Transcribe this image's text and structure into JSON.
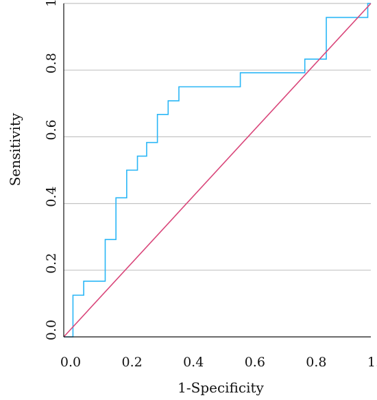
{
  "chart_data": {
    "type": "line",
    "title": "",
    "xlabel": "1-Specificity",
    "ylabel": "Sensitivity",
    "xlim": [
      0,
      1
    ],
    "ylim": [
      0,
      1
    ],
    "x_ticks": [
      "0.0",
      "0.2",
      "0.4",
      "0.6",
      "0.8",
      "1.0"
    ],
    "y_ticks": [
      "0.0",
      "0.2",
      "0.4",
      "0.6",
      "0.8",
      "1.0"
    ],
    "grid": "horizontal",
    "legend": "none",
    "series": [
      {
        "color": "#29b6f6",
        "style": "step",
        "x": [
          0.0,
          0.03,
          0.03,
          0.065,
          0.065,
          0.135,
          0.135,
          0.17,
          0.17,
          0.205,
          0.205,
          0.24,
          0.24,
          0.27,
          0.27,
          0.305,
          0.305,
          0.34,
          0.34,
          0.375,
          0.375,
          0.575,
          0.575,
          0.785,
          0.785,
          0.855,
          0.855,
          0.99,
          0.99,
          1.0
        ],
        "y": [
          0.0,
          0.0,
          0.125,
          0.125,
          0.167,
          0.167,
          0.292,
          0.292,
          0.417,
          0.417,
          0.5,
          0.5,
          0.542,
          0.542,
          0.583,
          0.583,
          0.667,
          0.667,
          0.708,
          0.708,
          0.75,
          0.75,
          0.792,
          0.792,
          0.833,
          0.833,
          0.958,
          0.958,
          1.0,
          1.0
        ]
      },
      {
        "color": "#d9467a",
        "style": "line",
        "x": [
          0,
          1
        ],
        "y": [
          0,
          1
        ]
      }
    ]
  }
}
